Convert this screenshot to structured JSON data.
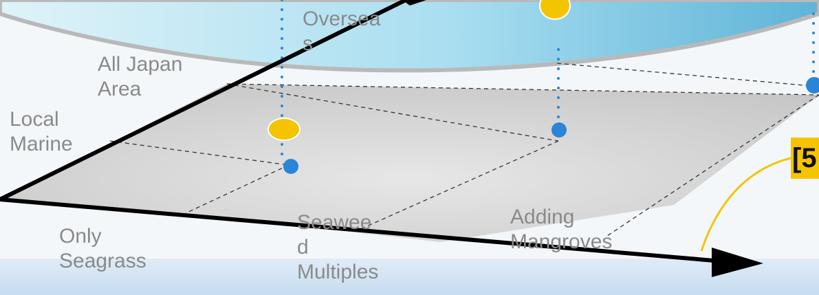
{
  "diagram": {
    "labels": {
      "overseas": "Oversea\ns",
      "all_japan": "All Japan\nArea",
      "local_marine": "Local\nMarine",
      "only_seagrass": "Only\nSeagrass",
      "seaweed_multiples": "Seawee\nd\nMultiples",
      "adding_mangroves": "Adding\nMangroves"
    },
    "badge_text": "[5"
  },
  "colors": {
    "sky": "#a8def0",
    "plane": "#d4d4d4",
    "axis": "#000000",
    "dot_blue": "#2a85d6",
    "dot_yellow": "#f5c400",
    "bottom_band": "#cfe3f3",
    "dashed_line": "#333333"
  }
}
